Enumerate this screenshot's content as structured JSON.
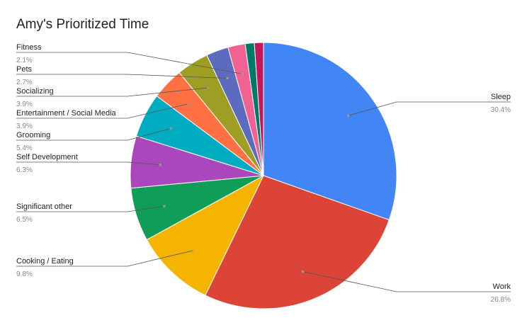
{
  "chart_data": {
    "type": "pie",
    "title": "Amy's Prioritized Time",
    "categories": [
      "Sleep",
      "Work",
      "Cooking / Eating",
      "Significant other",
      "Self Development",
      "Grooming",
      "Entertainment / Social Media",
      "Socializing",
      "Pets",
      "Fitness",
      null,
      null
    ],
    "values": [
      30.4,
      26.8,
      9.8,
      6.5,
      6.3,
      5.4,
      3.9,
      3.9,
      2.7,
      2.1,
      1.1,
      1.1
    ],
    "value_labels": [
      "30.4%",
      "26.8%",
      "9.8%",
      "6.5%",
      "6.3%",
      "5.4%",
      "3.9%",
      "3.9%",
      "2.7%",
      "2.1%",
      null,
      null
    ],
    "colors": [
      "#4285f4",
      "#db4437",
      "#f4b400",
      "#0f9d58",
      "#ab47bc",
      "#00acc1",
      "#ff7043",
      "#9e9d24",
      "#5c6bc0",
      "#f06292",
      "#00796b",
      "#c2185b"
    ]
  }
}
